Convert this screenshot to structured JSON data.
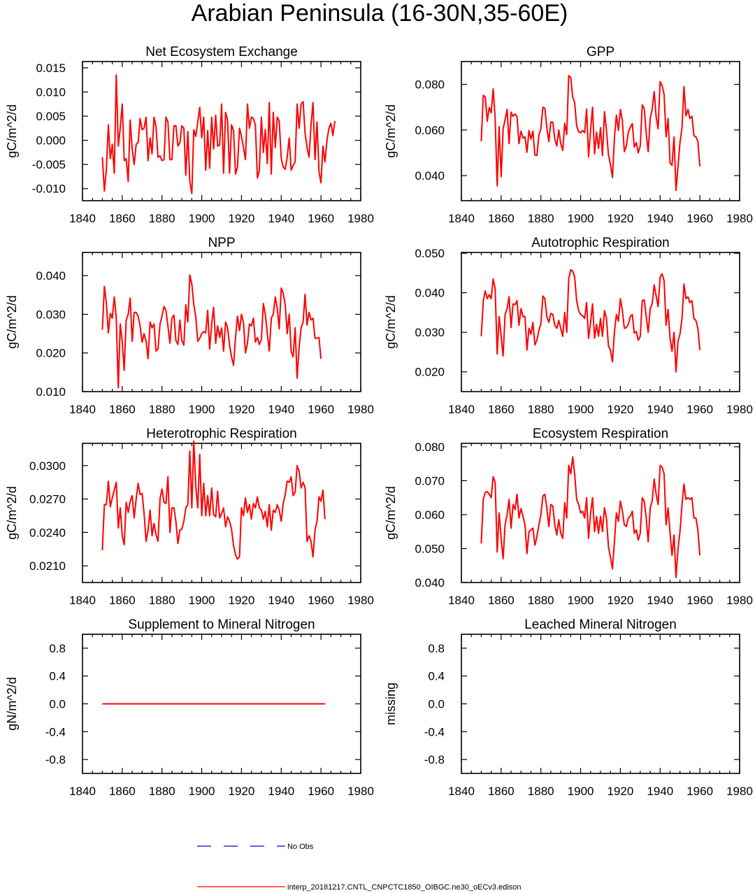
{
  "title": "Arabian Peninsula (16-30N,35-60E)",
  "x_ticks": [
    1840,
    1860,
    1880,
    1900,
    1920,
    1940,
    1960,
    1980
  ],
  "series_color": "#ff0000",
  "obs_color": "#0000cc",
  "legend": {
    "obs_label": "No Obs",
    "model_label": "interp_20181217.CNTL_CNPCTC1850_OIBGC.ne30_oECv3.edison"
  },
  "chart_data": [
    {
      "type": "line",
      "title": "Net Ecosystem Exchange",
      "ylabel": "gC/m^2/d",
      "xlim": [
        1840,
        1980
      ],
      "ylim": [
        -0.0125,
        0.0163
      ],
      "y_ticks": [
        -0.01,
        -0.005,
        0.0,
        0.005,
        0.01,
        0.015
      ],
      "y_tick_labels": [
        "-0.010",
        "-0.005",
        "0.000",
        "0.005",
        "0.010",
        "0.015"
      ],
      "x_start": 1850,
      "values": [
        -0.0035,
        -0.0105,
        -0.0062,
        0.0032,
        -0.0038,
        -0.0008,
        -0.0068,
        0.0135,
        -0.0012,
        0.0025,
        0.0075,
        -0.0042,
        -0.0038,
        -0.0085,
        0.0042,
        -0.0018,
        -0.005,
        -0.0008,
        -0.0005,
        0.0045,
        0.0022,
        0.0025,
        0.0048,
        -0.0042,
        0.0005,
        -0.0028,
        0.0048,
        0.0028,
        -0.0035,
        -0.0032,
        -0.0042,
        -0.004,
        0.0048,
        0.0038,
        -0.004,
        -0.004,
        0.003,
        0.003,
        -0.0012,
        -0.0005,
        0.003,
        0.0025,
        -0.0072,
        0.0018,
        -0.0085,
        -0.011,
        0.0022,
        0.0008,
        0.0038,
        0.0068,
        0.0005,
        0.0048,
        -0.0062,
        0.002,
        -0.0058,
        0.0048,
        -0.0018,
        0.0052,
        -0.0012,
        -0.001,
        0.0075,
        -0.0068,
        0.0058,
        0.0042,
        -0.0068,
        0.0032,
        0.002,
        -0.007,
        -0.0055,
        0.0025,
        0.0008,
        -0.0015,
        -0.004,
        0.0075,
        0.0025,
        0.0048,
        0.0045,
        0.0032,
        -0.0078,
        -0.0062,
        0.0048,
        -0.0025,
        0.0022,
        -0.0048,
        0.0078,
        -0.007,
        0.0058,
        -0.0015,
        0.0048,
        0.004,
        -0.0038,
        -0.0055,
        -0.006,
        -0.0035,
        0.0005,
        -0.0062,
        -0.0052,
        -0.0045,
        0.0075,
        0.0025,
        0.0075,
        0.008,
        0.0015,
        -0.0015,
        -0.0035,
        0.0032,
        0.0078,
        -0.004,
        0.0038,
        -0.0065,
        -0.0088,
        -0.0012,
        -0.0045,
        0.0,
        0.0025,
        0.0035,
        0.001,
        0.004
      ]
    },
    {
      "type": "line",
      "title": "GPP",
      "ylabel": "gC/m^2/d",
      "xlim": [
        1840,
        1980
      ],
      "ylim": [
        0.029,
        0.09
      ],
      "y_ticks": [
        0.04,
        0.06,
        0.08
      ],
      "y_tick_labels": [
        "0.040",
        "0.060",
        "0.080"
      ],
      "x_start": 1850,
      "values": [
        0.055,
        0.0752,
        0.0745,
        0.0638,
        0.0698,
        0.0675,
        0.078,
        0.065,
        0.0355,
        0.0615,
        0.0395,
        0.0605,
        0.0645,
        0.069,
        0.054,
        0.0678,
        0.066,
        0.067,
        0.0658,
        0.054,
        0.0595,
        0.0565,
        0.057,
        0.0502,
        0.0598,
        0.056,
        0.0595,
        0.049,
        0.0488,
        0.0578,
        0.0605,
        0.07,
        0.0695,
        0.061,
        0.055,
        0.0635,
        0.0635,
        0.056,
        0.053,
        0.06,
        0.054,
        0.051,
        0.063,
        0.058,
        0.0838,
        0.083,
        0.0745,
        0.072,
        0.0618,
        0.0592,
        0.0588,
        0.0598,
        0.0588,
        0.0692,
        0.0482,
        0.06,
        0.07,
        0.0495,
        0.059,
        0.052,
        0.061,
        0.0488,
        0.068,
        0.06,
        0.049,
        0.045,
        0.0392,
        0.0565,
        0.0665,
        0.0598,
        0.069,
        0.064,
        0.0505,
        0.053,
        0.059,
        0.0612,
        0.0628,
        0.0525,
        0.0545,
        0.05,
        0.053,
        0.071,
        0.0695,
        0.0585,
        0.0505,
        0.065,
        0.069,
        0.0768,
        0.0658,
        0.0605,
        0.0812,
        0.0795,
        0.0755,
        0.057,
        0.065,
        0.0455,
        0.0445,
        0.057,
        0.0335,
        0.044,
        0.0545,
        0.061,
        0.079,
        0.0662,
        0.069,
        0.065,
        0.066,
        0.0575,
        0.057,
        0.055,
        0.044
      ]
    },
    {
      "type": "line",
      "title": "NPP",
      "ylabel": "gC/m^2/d",
      "xlim": [
        1840,
        1980
      ],
      "ylim": [
        0.01,
        0.046
      ],
      "y_ticks": [
        0.01,
        0.02,
        0.03,
        0.04
      ],
      "y_tick_labels": [
        "0.010",
        "0.020",
        "0.030",
        "0.040"
      ],
      "x_start": 1850,
      "values": [
        0.026,
        0.0372,
        0.033,
        0.0252,
        0.0302,
        0.029,
        0.0345,
        0.029,
        0.011,
        0.0275,
        0.0228,
        0.0155,
        0.0285,
        0.03,
        0.0342,
        0.023,
        0.0305,
        0.0305,
        0.0295,
        0.027,
        0.0228,
        0.025,
        0.023,
        0.0185,
        0.028,
        0.0265,
        0.0275,
        0.0205,
        0.021,
        0.0275,
        0.0295,
        0.032,
        0.031,
        0.027,
        0.0225,
        0.029,
        0.0298,
        0.0232,
        0.0222,
        0.0285,
        0.0232,
        0.022,
        0.0325,
        0.028,
        0.0402,
        0.0378,
        0.0325,
        0.0295,
        0.023,
        0.0238,
        0.025,
        0.0255,
        0.0252,
        0.031,
        0.021,
        0.0275,
        0.0318,
        0.0225,
        0.027,
        0.024,
        0.0265,
        0.0205,
        0.028,
        0.0265,
        0.022,
        0.019,
        0.0168,
        0.024,
        0.0295,
        0.0258,
        0.03,
        0.0278,
        0.02,
        0.0225,
        0.0275,
        0.027,
        0.029,
        0.0228,
        0.024,
        0.0222,
        0.0235,
        0.0328,
        0.03,
        0.025,
        0.0205,
        0.029,
        0.03,
        0.0345,
        0.0315,
        0.0262,
        0.0368,
        0.0355,
        0.0325,
        0.025,
        0.03,
        0.0205,
        0.019,
        0.0265,
        0.0135,
        0.0215,
        0.0265,
        0.028,
        0.0352,
        0.0272,
        0.0305,
        0.0285,
        0.029,
        0.0238,
        0.0238,
        0.024,
        0.0185
      ]
    },
    {
      "type": "line",
      "title": "Autotrophic Respiration",
      "ylabel": "gC/m^2/d",
      "xlim": [
        1840,
        1980
      ],
      "ylim": [
        0.015,
        0.0502
      ],
      "y_ticks": [
        0.02,
        0.03,
        0.04,
        0.05
      ],
      "y_tick_labels": [
        "0.020",
        "0.030",
        "0.040",
        "0.050"
      ],
      "x_start": 1850,
      "values": [
        0.029,
        0.038,
        0.0405,
        0.0385,
        0.0395,
        0.0385,
        0.0435,
        0.041,
        0.0245,
        0.034,
        0.029,
        0.024,
        0.0345,
        0.036,
        0.039,
        0.0312,
        0.0372,
        0.037,
        0.038,
        0.0318,
        0.036,
        0.034,
        0.034,
        0.0255,
        0.031,
        0.0295,
        0.0325,
        0.0268,
        0.028,
        0.0305,
        0.0322,
        0.0392,
        0.0385,
        0.034,
        0.0325,
        0.0348,
        0.0345,
        0.0318,
        0.031,
        0.033,
        0.031,
        0.029,
        0.035,
        0.03,
        0.0435,
        0.0458,
        0.0455,
        0.044,
        0.038,
        0.0355,
        0.0345,
        0.0342,
        0.0335,
        0.0375,
        0.0285,
        0.0325,
        0.0372,
        0.0285,
        0.032,
        0.029,
        0.0335,
        0.029,
        0.0355,
        0.0335,
        0.0265,
        0.0255,
        0.0225,
        0.03,
        0.0345,
        0.0328,
        0.0385,
        0.0355,
        0.031,
        0.0312,
        0.032,
        0.034,
        0.0345,
        0.0298,
        0.0302,
        0.028,
        0.029,
        0.038,
        0.0382,
        0.034,
        0.03,
        0.036,
        0.0372,
        0.042,
        0.0392,
        0.0365,
        0.044,
        0.0448,
        0.043,
        0.0318,
        0.0358,
        0.0285,
        0.0252,
        0.03,
        0.02,
        0.0278,
        0.0295,
        0.0335,
        0.0422,
        0.0385,
        0.039,
        0.0375,
        0.038,
        0.0335,
        0.033,
        0.031,
        0.0255
      ]
    },
    {
      "type": "line",
      "title": "Heterotrophic Respiration",
      "ylabel": "gC/m^2/d",
      "xlim": [
        1840,
        1980
      ],
      "ylim": [
        0.0195,
        0.032
      ],
      "y_ticks": [
        0.021,
        0.024,
        0.027,
        0.03
      ],
      "y_tick_labels": [
        "0.0210",
        "0.0240",
        "0.0270",
        "0.0300"
      ],
      "x_start": 1850,
      "values": [
        0.0224,
        0.0265,
        0.0265,
        0.0286,
        0.0263,
        0.0271,
        0.0278,
        0.0285,
        0.0244,
        0.0262,
        0.0237,
        0.0229,
        0.0267,
        0.0258,
        0.0268,
        0.0273,
        0.0253,
        0.027,
        0.0284,
        0.0274,
        0.0275,
        0.0257,
        0.0232,
        0.0242,
        0.026,
        0.0237,
        0.0248,
        0.0238,
        0.0232,
        0.027,
        0.0279,
        0.0267,
        0.0266,
        0.029,
        0.024,
        0.0262,
        0.0262,
        0.025,
        0.023,
        0.0242,
        0.0243,
        0.025,
        0.0262,
        0.0265,
        0.0313,
        0.0262,
        0.0322,
        0.0282,
        0.0262,
        0.031,
        0.0255,
        0.0284,
        0.0255,
        0.0273,
        0.0255,
        0.028,
        0.0256,
        0.0254,
        0.0277,
        0.0253,
        0.0257,
        0.0262,
        0.0245,
        0.0254,
        0.025,
        0.0243,
        0.0228,
        0.022,
        0.0216,
        0.0218,
        0.0262,
        0.0255,
        0.0271,
        0.0258,
        0.0265,
        0.0252,
        0.0266,
        0.0262,
        0.0272,
        0.0262,
        0.026,
        0.0252,
        0.0259,
        0.0245,
        0.0265,
        0.0242,
        0.026,
        0.0258,
        0.0265,
        0.026,
        0.025,
        0.0266,
        0.0274,
        0.0286,
        0.0285,
        0.029,
        0.0273,
        0.0276,
        0.03,
        0.0295,
        0.028,
        0.0285,
        0.028,
        0.0232,
        0.0237,
        0.0232,
        0.0218,
        0.0242,
        0.025,
        0.0272,
        0.0268,
        0.0278,
        0.0252
      ]
    },
    {
      "type": "line",
      "title": "Ecosystem Respiration",
      "ylabel": "gC/m^2/d",
      "xlim": [
        1840,
        1980
      ],
      "ylim": [
        0.04,
        0.081
      ],
      "y_ticks": [
        0.04,
        0.05,
        0.06,
        0.07,
        0.08
      ],
      "y_tick_labels": [
        "0.040",
        "0.050",
        "0.060",
        "0.070",
        "0.080"
      ],
      "x_start": 1850,
      "values": [
        0.0515,
        0.0645,
        0.0665,
        0.0668,
        0.066,
        0.065,
        0.0712,
        0.0695,
        0.049,
        0.0605,
        0.053,
        0.047,
        0.057,
        0.06,
        0.0645,
        0.056,
        0.063,
        0.0615,
        0.066,
        0.059,
        0.0618,
        0.0595,
        0.057,
        0.0485,
        0.055,
        0.0555,
        0.056,
        0.051,
        0.0535,
        0.057,
        0.06,
        0.0655,
        0.066,
        0.062,
        0.0565,
        0.063,
        0.0625,
        0.057,
        0.054,
        0.0585,
        0.0545,
        0.053,
        0.0635,
        0.059,
        0.0745,
        0.072,
        0.077,
        0.072,
        0.0645,
        0.063,
        0.0605,
        0.061,
        0.059,
        0.065,
        0.053,
        0.0605,
        0.065,
        0.055,
        0.0595,
        0.0545,
        0.0595,
        0.055,
        0.062,
        0.059,
        0.0505,
        0.0475,
        0.044,
        0.052,
        0.0605,
        0.058,
        0.064,
        0.061,
        0.057,
        0.0565,
        0.059,
        0.0595,
        0.061,
        0.0545,
        0.0555,
        0.0525,
        0.0545,
        0.065,
        0.064,
        0.059,
        0.052,
        0.062,
        0.064,
        0.0705,
        0.066,
        0.063,
        0.0745,
        0.074,
        0.072,
        0.057,
        0.062,
        0.0545,
        0.048,
        0.054,
        0.0415,
        0.05,
        0.055,
        0.063,
        0.069,
        0.0645,
        0.065,
        0.0645,
        0.065,
        0.059,
        0.059,
        0.0555,
        0.048
      ]
    },
    {
      "type": "line",
      "title": "Supplement to Mineral Nitrogen",
      "ylabel": "gN/m^2/d",
      "xlim": [
        1840,
        1980
      ],
      "ylim": [
        -1.0,
        1.0
      ],
      "y_ticks": [
        -0.8,
        -0.4,
        0.0,
        0.4,
        0.8
      ],
      "y_tick_labels": [
        "-0.8",
        "-0.4",
        "0.0",
        "0.4",
        "0.8"
      ],
      "x_start": 1850,
      "constant": 0.0,
      "x_end": 1962
    },
    {
      "type": "line",
      "title": "Leached Mineral Nitrogen",
      "ylabel": "missing",
      "xlim": [
        1840,
        1980
      ],
      "ylim": [
        -1.0,
        1.0
      ],
      "y_ticks": [
        -0.8,
        -0.4,
        0.0,
        0.4,
        0.8
      ],
      "y_tick_labels": [
        "-0.8",
        "-0.4",
        "0.0",
        "0.4",
        "0.8"
      ],
      "empty": true
    }
  ]
}
